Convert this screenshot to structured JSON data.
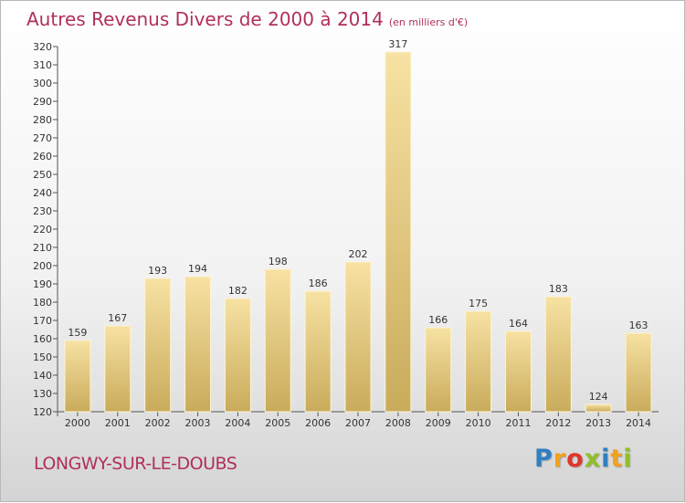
{
  "title": "Autres Revenus Divers de 2000 à 2014",
  "unit_note": "(en milliers d'€)",
  "place": "LONGWY-SUR-LE-DOUBS",
  "brand": {
    "text": "Proxiti",
    "letter_colors": [
      "#2f7fc1",
      "#f0a21e",
      "#e1362b",
      "#8fbf2a",
      "#2f7fc1",
      "#f0a21e",
      "#8fbf2a"
    ]
  },
  "colors": {
    "title": "#b0305a",
    "bar_light": "#f7e2a3",
    "bar_dark": "#c9ab5b",
    "bar_edge": "#fdf3d4"
  },
  "chart_data": {
    "type": "bar",
    "title": "Autres Revenus Divers de 2000 à 2014",
    "subtitle": "(en milliers d'€)",
    "xlabel": "",
    "ylabel": "",
    "categories": [
      "2000",
      "2001",
      "2002",
      "2003",
      "2004",
      "2005",
      "2006",
      "2007",
      "2008",
      "2009",
      "2010",
      "2011",
      "2012",
      "2013",
      "2014"
    ],
    "values": [
      159,
      167,
      193,
      194,
      182,
      198,
      186,
      202,
      317,
      166,
      175,
      164,
      183,
      124,
      163
    ],
    "ylim": [
      120,
      320
    ],
    "yticks": [
      120,
      130,
      140,
      150,
      160,
      170,
      180,
      190,
      200,
      210,
      220,
      230,
      240,
      250,
      260,
      270,
      280,
      290,
      300,
      310,
      320
    ],
    "grid": false,
    "data_labels": true,
    "legend": "none"
  }
}
